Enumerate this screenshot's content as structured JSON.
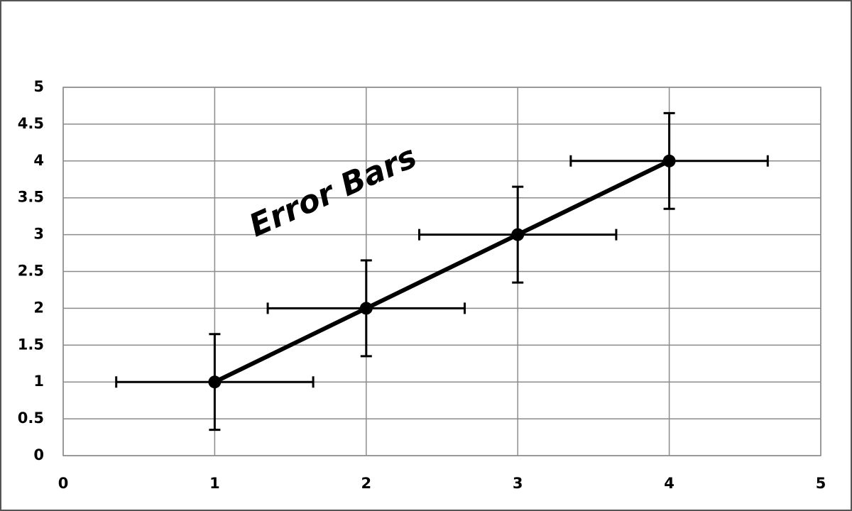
{
  "chart_data": {
    "type": "errorbar_line",
    "annotation": "Error Bars",
    "x": [
      1,
      2,
      3,
      4
    ],
    "values": [
      1,
      2,
      3,
      4
    ],
    "x_errors": [
      0.65,
      0.65,
      0.65,
      0.65
    ],
    "y_errors": [
      0.65,
      0.65,
      0.65,
      0.65
    ],
    "color": "#000000",
    "xlim": [
      0,
      5
    ],
    "xticks": [
      0,
      1,
      2,
      3,
      4,
      5
    ],
    "ylim": [
      0,
      5
    ],
    "yticks": [
      0,
      0.5,
      1,
      1.5,
      2,
      2.5,
      3,
      3.5,
      4,
      4.5,
      5
    ],
    "grid": true
  }
}
